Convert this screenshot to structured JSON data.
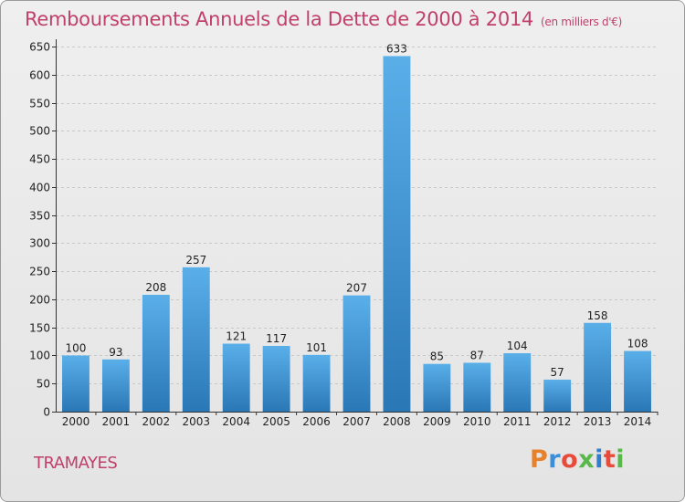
{
  "header": {
    "title": "Remboursements Annuels de la Dette de 2000 à 2014",
    "unit": "(en milliers d'€)"
  },
  "footer": {
    "commune": "TRAMAYES",
    "brand": "Proxiti"
  },
  "colors": {
    "title": "#c0406a",
    "bar_top": "#5aafe9",
    "bar_bottom": "#2a77b6",
    "axis": "#333333"
  },
  "chart_data": {
    "type": "bar",
    "title": "Remboursements Annuels de la Dette de 2000 à 2014",
    "xlabel": "",
    "ylabel": "",
    "categories": [
      "2000",
      "2001",
      "2002",
      "2003",
      "2004",
      "2005",
      "2006",
      "2007",
      "2008",
      "2009",
      "2010",
      "2011",
      "2012",
      "2013",
      "2014"
    ],
    "values": [
      100,
      93,
      208,
      257,
      121,
      117,
      101,
      207,
      633,
      85,
      87,
      104,
      57,
      158,
      108
    ],
    "ylim": [
      0,
      650
    ],
    "yticks": [
      0,
      50,
      100,
      150,
      200,
      250,
      300,
      350,
      400,
      450,
      500,
      550,
      600,
      650
    ],
    "grid": true,
    "data_labels": true
  }
}
